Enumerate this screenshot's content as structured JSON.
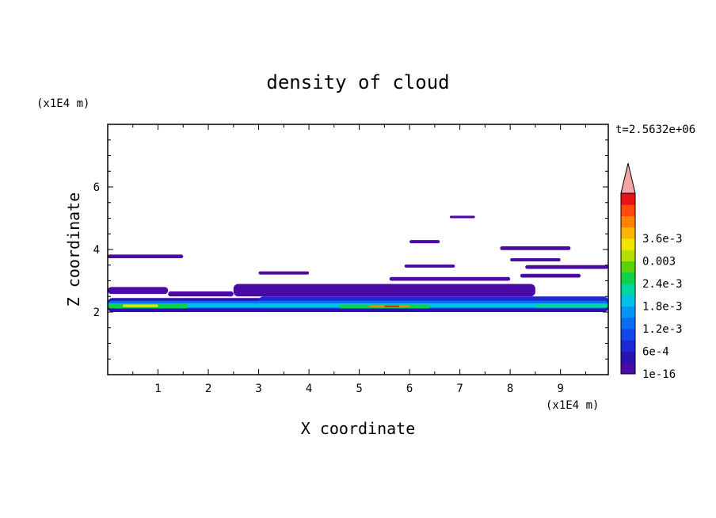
{
  "chart_data": {
    "type": "heatmap",
    "title": "density of cloud",
    "xlabel": "X coordinate",
    "ylabel": "Z coordinate",
    "x_unit": "(x1E4 m)",
    "y_unit": "(x1E4 m)",
    "time_label": "t=2.5632e+06",
    "xlim": [
      0,
      9.95
    ],
    "ylim": [
      0,
      8
    ],
    "x_ticks": [
      "1",
      "2",
      "3",
      "4",
      "5",
      "6",
      "7",
      "8",
      "9"
    ],
    "y_ticks": [
      "2",
      "4",
      "6"
    ],
    "colorbar": {
      "labels": [
        "1e-16",
        "6e-4",
        "1.2e-3",
        "1.8e-3",
        "2.4e-3",
        "0.003",
        "3.6e-3"
      ],
      "colors": [
        "#4b0aa5",
        "#2a12b2",
        "#1e28d2",
        "#1446ea",
        "#0a6ef5",
        "#0096f8",
        "#00c2e6",
        "#00d6a0",
        "#10d24a",
        "#5ad20a",
        "#b4e000",
        "#f0e600",
        "#ffb400",
        "#ff8200",
        "#ff4b0a",
        "#e61414"
      ],
      "extend_color": "#f4a6a6",
      "extend_top": true
    },
    "cloud_bands": [
      {
        "x": [
          0.0,
          1.5
        ],
        "z": [
          3.72,
          3.84
        ],
        "level": 0
      },
      {
        "x": [
          6.8,
          7.3
        ],
        "z": [
          5.0,
          5.08
        ],
        "level": 0
      },
      {
        "x": [
          6.0,
          6.6
        ],
        "z": [
          4.2,
          4.3
        ],
        "level": 0
      },
      {
        "x": [
          5.9,
          6.9
        ],
        "z": [
          3.42,
          3.52
        ],
        "level": 0
      },
      {
        "x": [
          3.0,
          4.0
        ],
        "z": [
          3.2,
          3.3
        ],
        "level": 0
      },
      {
        "x": [
          7.8,
          9.2
        ],
        "z": [
          3.98,
          4.1
        ],
        "level": 0
      },
      {
        "x": [
          8.0,
          9.0
        ],
        "z": [
          3.62,
          3.72
        ],
        "level": 0
      },
      {
        "x": [
          8.3,
          9.95
        ],
        "z": [
          3.38,
          3.5
        ],
        "level": 0
      },
      {
        "x": [
          5.6,
          8.0
        ],
        "z": [
          3.0,
          3.12
        ],
        "level": 0
      },
      {
        "x": [
          8.2,
          9.4
        ],
        "z": [
          3.1,
          3.22
        ],
        "level": 0
      },
      {
        "x": [
          0.0,
          1.2
        ],
        "z": [
          2.58,
          2.8
        ],
        "level": 0
      },
      {
        "x": [
          1.2,
          2.5
        ],
        "z": [
          2.5,
          2.66
        ],
        "level": 0
      },
      {
        "x": [
          2.5,
          8.5
        ],
        "z": [
          2.5,
          2.9
        ],
        "level": 0
      },
      {
        "x": [
          0.0,
          9.95
        ],
        "z": [
          2.0,
          2.45
        ],
        "level": 1
      },
      {
        "x": [
          3.0,
          9.95
        ],
        "z": [
          2.1,
          2.5
        ],
        "level": 2
      },
      {
        "x": [
          0.0,
          9.95
        ],
        "z": [
          2.12,
          2.36
        ],
        "level": 4
      },
      {
        "x": [
          0.0,
          9.95
        ],
        "z": [
          2.15,
          2.28
        ],
        "level": 6
      },
      {
        "x": [
          0.0,
          1.6
        ],
        "z": [
          2.12,
          2.26
        ],
        "level": 8
      },
      {
        "x": [
          0.3,
          1.0
        ],
        "z": [
          2.16,
          2.24
        ],
        "level": 11
      },
      {
        "x": [
          4.6,
          6.4
        ],
        "z": [
          2.12,
          2.24
        ],
        "level": 8
      },
      {
        "x": [
          5.2,
          6.0
        ],
        "z": [
          2.15,
          2.22
        ],
        "level": 13
      },
      {
        "x": [
          5.5,
          5.8
        ],
        "z": [
          2.16,
          2.21
        ],
        "level": 15
      },
      {
        "x": [
          8.5,
          9.95
        ],
        "z": [
          2.14,
          2.26
        ],
        "level": 7
      }
    ]
  }
}
